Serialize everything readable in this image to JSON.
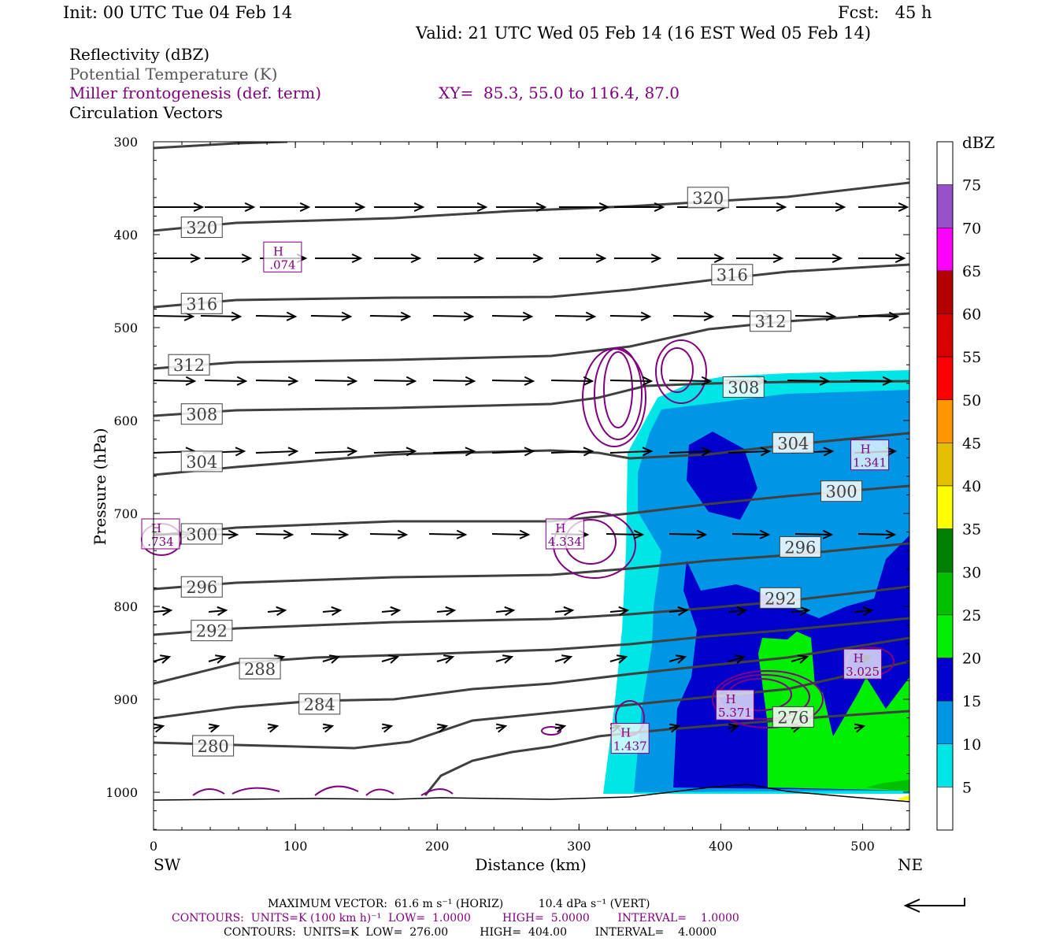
{
  "header": {
    "init": "Init: 00 UTC Tue 04 Feb 14",
    "fcst": "Fcst:   45 h",
    "valid": "Valid: 21 UTC Wed 05 Feb 14 (16 EST Wed 05 Feb 14)",
    "legend": [
      {
        "text": "Reflectivity (dBZ)",
        "color": "#000000"
      },
      {
        "text": "Potential Temperature (K)",
        "color": "#555555"
      },
      {
        "text": "Miller frontogenesis (def. term)",
        "color": "#800080"
      },
      {
        "text": "Circulation Vectors",
        "color": "#000000"
      }
    ],
    "xy": "XY=  85.3, 55.0 to 116.4, 87.0"
  },
  "chart_data": {
    "type": "heatmap",
    "ylabel": "Pressure (hPa)",
    "xlabel": "Distance (km)",
    "x_range": [
      0,
      533
    ],
    "y_range_hPa": [
      300,
      1040
    ],
    "y_inverted": true,
    "x_ticks": [
      "0",
      "100",
      "200",
      "300",
      "400",
      "500"
    ],
    "y_ticks": [
      "300",
      "400",
      "500",
      "600",
      "700",
      "800",
      "900",
      "1000"
    ],
    "x_end_labels": {
      "left": "SW",
      "right": "NE"
    },
    "colorbar": {
      "unit": "dBZ",
      "levels": [
        "5",
        "10",
        "15",
        "20",
        "25",
        "30",
        "35",
        "40",
        "45",
        "50",
        "55",
        "60",
        "65",
        "70",
        "75"
      ],
      "colors": [
        "#ffffff",
        "#00e6e6",
        "#0096e6",
        "#0000cd",
        "#00ee00",
        "#00c000",
        "#008000",
        "#ffff00",
        "#e6c000",
        "#ff9600",
        "#ff0000",
        "#d90000",
        "#b40000",
        "#ff00ff",
        "#9650c8",
        "#ffffff"
      ]
    },
    "theta_K_labels": [
      {
        "label": "320",
        "x": 34,
        "p": 392
      },
      {
        "label": "320",
        "x": 391,
        "p": 360
      },
      {
        "label": "316",
        "x": 34,
        "p": 474
      },
      {
        "label": "316",
        "x": 408,
        "p": 443
      },
      {
        "label": "312",
        "x": 25,
        "p": 540
      },
      {
        "label": "312",
        "x": 435,
        "p": 493
      },
      {
        "label": "308",
        "x": 34,
        "p": 593
      },
      {
        "label": "308",
        "x": 416,
        "p": 564
      },
      {
        "label": "304",
        "x": 34,
        "p": 644
      },
      {
        "label": "304",
        "x": 451,
        "p": 624
      },
      {
        "label": "300",
        "x": 34,
        "p": 722
      },
      {
        "label": "300",
        "x": 485,
        "p": 676
      },
      {
        "label": "296",
        "x": 34,
        "p": 779
      },
      {
        "label": "296",
        "x": 456,
        "p": 736
      },
      {
        "label": "292",
        "x": 41,
        "p": 826
      },
      {
        "label": "292",
        "x": 442,
        "p": 791
      },
      {
        "label": "288",
        "x": 75,
        "p": 867
      },
      {
        "label": "284",
        "x": 117,
        "p": 905
      },
      {
        "label": "280",
        "x": 42,
        "p": 950
      },
      {
        "label": "276",
        "x": 451,
        "p": 919
      }
    ],
    "frontogenesis_highs": [
      {
        "label": "H",
        "value": ".074",
        "x": 91,
        "p": 424
      },
      {
        "label": "H",
        "value": ".734",
        "x": 5,
        "p": 722
      },
      {
        "label": "H",
        "value": "4.334",
        "x": 290,
        "p": 722
      },
      {
        "label": "H",
        "value": "1.341",
        "x": 505,
        "p": 637
      },
      {
        "label": "H",
        "value": "3.025",
        "x": 500,
        "p": 862
      },
      {
        "label": "H",
        "value": "5.371",
        "x": 410,
        "p": 906
      },
      {
        "label": "H",
        "value": "1.437",
        "x": 336,
        "p": 942
      }
    ]
  },
  "footer": {
    "max_vector": "MAXIMUM VECTOR:  61.6 m s⁻¹ (HORIZ)          10.4 dPa s⁻¹ (VERT)",
    "contours1": "CONTOURS:  UNITS=K (100 km h)⁻¹  LOW=  1.0000         HIGH=  5.0000        INTERVAL=    1.0000",
    "contours2": "CONTOURS:  UNITS=K  LOW=  276.00         HIGH=  404.00        INTERVAL=    4.0000"
  }
}
